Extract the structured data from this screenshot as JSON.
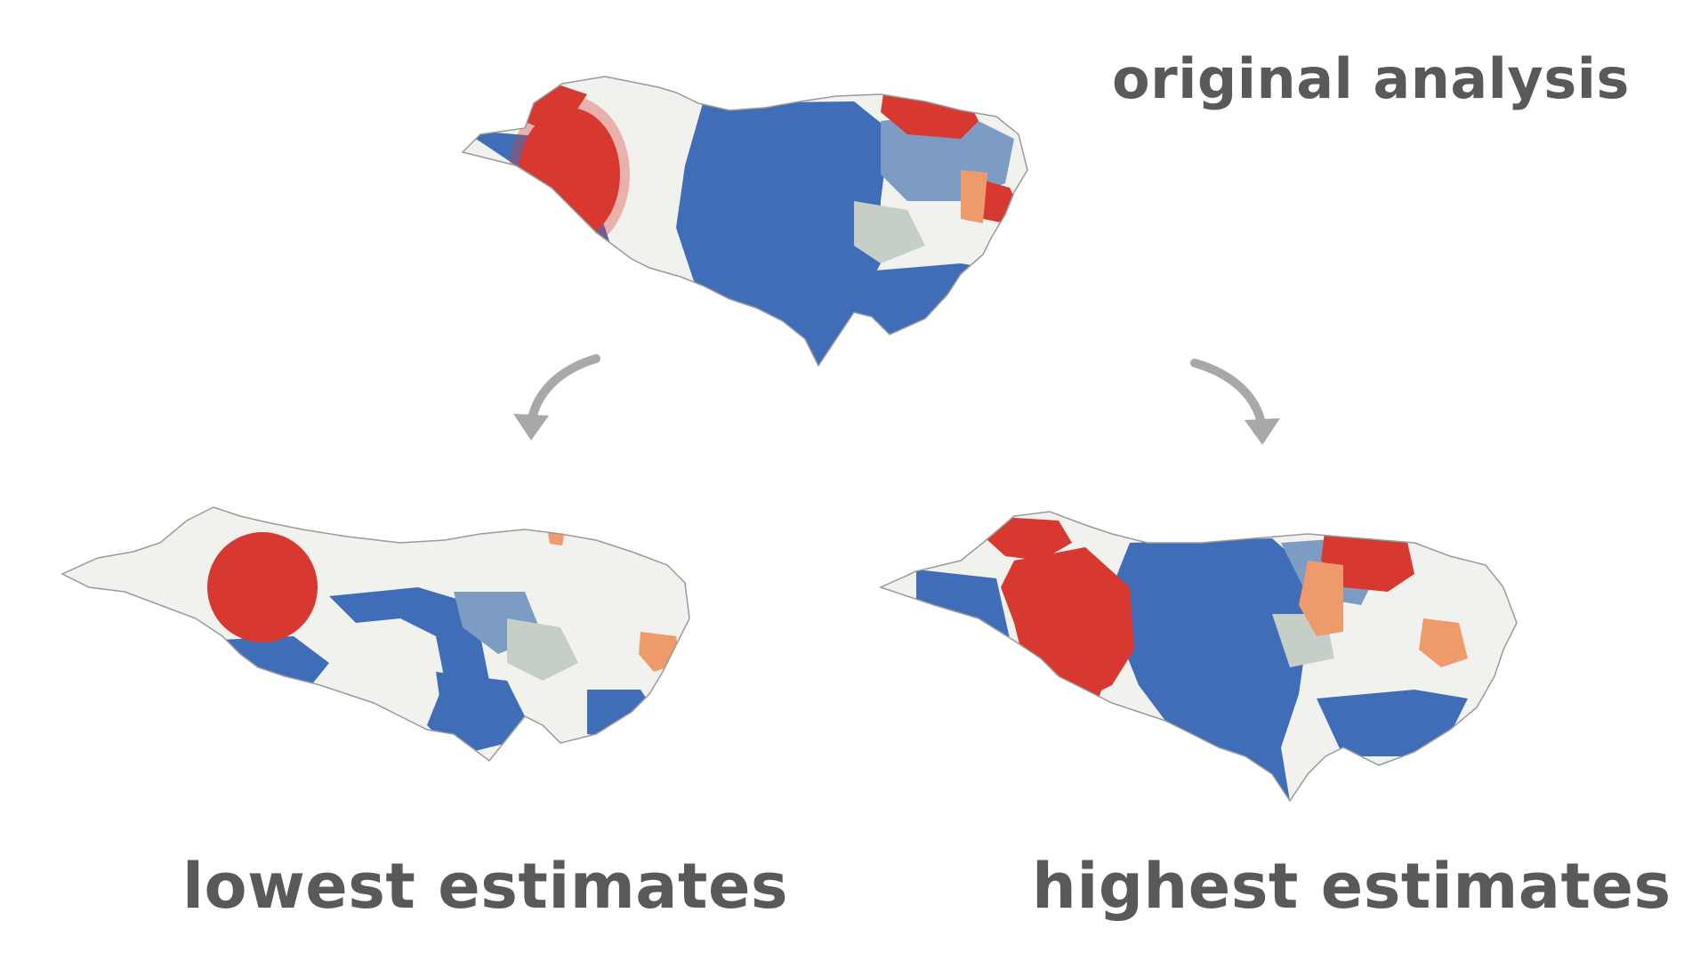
{
  "captions": {
    "original": "original analysis",
    "lowest": "lowest estimates",
    "highest": "highest estimates"
  },
  "colors": {
    "hot_red": "#d7382f",
    "warm_orange": "#ef9a6a",
    "cold_blue": "#3f6db8",
    "light_blue": "#7c9cc4",
    "sage": "#c5cfc6",
    "land": "#f1f1ee",
    "outline": "#9a9a9a",
    "caption_text": "#595959",
    "arrow": "#a8a8a8"
  },
  "icons": {
    "left_arrow": "curved-arrow-down-left-icon",
    "right_arrow": "curved-arrow-down-right-icon"
  }
}
